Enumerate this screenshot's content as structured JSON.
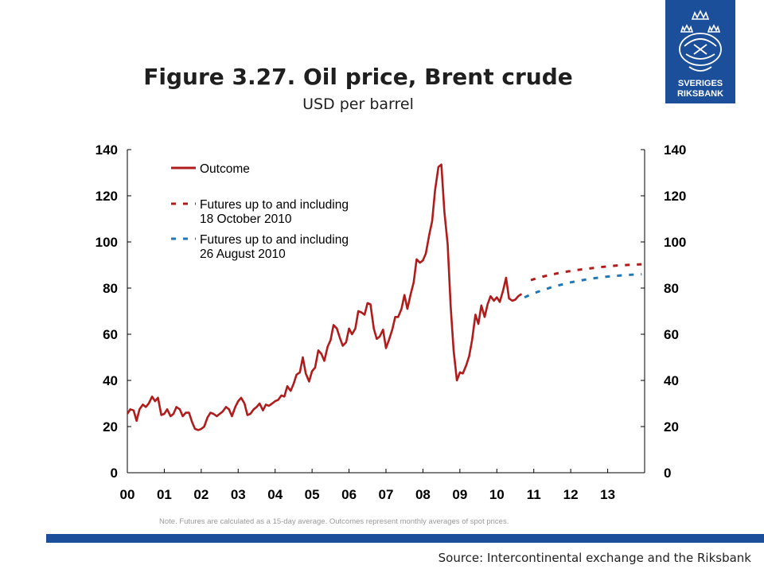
{
  "header": {
    "title": "Figure 3.27. Oil price, Brent crude",
    "subtitle": "USD per barrel"
  },
  "logo": {
    "line1": "SVERIGES",
    "line2": "RIKSBANK",
    "color": "#1b4f9a"
  },
  "footer": {
    "note": "Note. Futures are calculated as a 15-day average. Outcomes represent monthly averages of spot prices.",
    "source": "Source: Intercontinental exchange and the Riksbank"
  },
  "chart_data": {
    "type": "line",
    "title": "Figure 3.27. Oil price, Brent crude",
    "ylabel": "USD per barrel",
    "xlim": [
      2000,
      2014
    ],
    "ylim": [
      0,
      140
    ],
    "yticks": [
      0,
      20,
      40,
      60,
      80,
      100,
      120,
      140
    ],
    "xtick_labels": [
      "00",
      "01",
      "02",
      "03",
      "04",
      "05",
      "06",
      "07",
      "08",
      "09",
      "10",
      "11",
      "12",
      "13"
    ],
    "grid": false,
    "legend_position": "top-left",
    "series": [
      {
        "name": "Outcome",
        "style": "solid",
        "color": "#b01c1c",
        "points": [
          [
            2000.0,
            25.5
          ],
          [
            2000.08,
            27.5
          ],
          [
            2000.17,
            27.0
          ],
          [
            2000.25,
            22.5
          ],
          [
            2000.33,
            27.5
          ],
          [
            2000.42,
            29.5
          ],
          [
            2000.5,
            28.5
          ],
          [
            2000.58,
            30.0
          ],
          [
            2000.67,
            33.0
          ],
          [
            2000.75,
            31.0
          ],
          [
            2000.83,
            32.5
          ],
          [
            2000.92,
            25.0
          ],
          [
            2001.0,
            25.5
          ],
          [
            2001.08,
            27.5
          ],
          [
            2001.17,
            24.5
          ],
          [
            2001.25,
            25.5
          ],
          [
            2001.33,
            28.5
          ],
          [
            2001.42,
            27.5
          ],
          [
            2001.5,
            24.5
          ],
          [
            2001.58,
            26.0
          ],
          [
            2001.67,
            26.0
          ],
          [
            2001.75,
            22.0
          ],
          [
            2001.83,
            19.0
          ],
          [
            2001.92,
            18.5
          ],
          [
            2002.0,
            19.0
          ],
          [
            2002.08,
            20.0
          ],
          [
            2002.17,
            24.0
          ],
          [
            2002.25,
            26.0
          ],
          [
            2002.33,
            25.5
          ],
          [
            2002.42,
            24.5
          ],
          [
            2002.5,
            25.5
          ],
          [
            2002.58,
            26.5
          ],
          [
            2002.67,
            28.5
          ],
          [
            2002.75,
            27.5
          ],
          [
            2002.83,
            24.5
          ],
          [
            2002.92,
            28.5
          ],
          [
            2003.0,
            31.0
          ],
          [
            2003.08,
            32.5
          ],
          [
            2003.17,
            30.0
          ],
          [
            2003.25,
            25.0
          ],
          [
            2003.33,
            25.5
          ],
          [
            2003.42,
            27.5
          ],
          [
            2003.5,
            28.5
          ],
          [
            2003.58,
            30.0
          ],
          [
            2003.67,
            27.0
          ],
          [
            2003.75,
            29.5
          ],
          [
            2003.83,
            29.0
          ],
          [
            2003.92,
            30.0
          ],
          [
            2004.0,
            31.0
          ],
          [
            2004.08,
            31.5
          ],
          [
            2004.17,
            33.5
          ],
          [
            2004.25,
            33.0
          ],
          [
            2004.33,
            37.5
          ],
          [
            2004.42,
            35.5
          ],
          [
            2004.5,
            38.5
          ],
          [
            2004.58,
            42.5
          ],
          [
            2004.67,
            43.5
          ],
          [
            2004.75,
            50.0
          ],
          [
            2004.83,
            43.0
          ],
          [
            2004.92,
            39.5
          ],
          [
            2005.0,
            44.0
          ],
          [
            2005.08,
            45.5
          ],
          [
            2005.17,
            53.0
          ],
          [
            2005.25,
            51.5
          ],
          [
            2005.33,
            48.5
          ],
          [
            2005.42,
            54.5
          ],
          [
            2005.5,
            57.5
          ],
          [
            2005.58,
            64.0
          ],
          [
            2005.67,
            62.5
          ],
          [
            2005.75,
            58.5
          ],
          [
            2005.83,
            55.0
          ],
          [
            2005.92,
            56.5
          ],
          [
            2006.0,
            62.5
          ],
          [
            2006.08,
            60.0
          ],
          [
            2006.17,
            62.5
          ],
          [
            2006.25,
            70.0
          ],
          [
            2006.33,
            69.5
          ],
          [
            2006.42,
            68.5
          ],
          [
            2006.5,
            73.5
          ],
          [
            2006.58,
            73.0
          ],
          [
            2006.67,
            62.5
          ],
          [
            2006.75,
            58.0
          ],
          [
            2006.83,
            59.0
          ],
          [
            2006.92,
            62.0
          ],
          [
            2007.0,
            54.0
          ],
          [
            2007.08,
            57.5
          ],
          [
            2007.17,
            62.0
          ],
          [
            2007.25,
            67.5
          ],
          [
            2007.33,
            67.5
          ],
          [
            2007.42,
            71.0
          ],
          [
            2007.5,
            77.0
          ],
          [
            2007.58,
            71.0
          ],
          [
            2007.67,
            77.5
          ],
          [
            2007.75,
            82.5
          ],
          [
            2007.83,
            92.5
          ],
          [
            2007.92,
            91.0
          ],
          [
            2008.0,
            92.0
          ],
          [
            2008.08,
            95.0
          ],
          [
            2008.17,
            103.0
          ],
          [
            2008.25,
            109.0
          ],
          [
            2008.33,
            122.5
          ],
          [
            2008.42,
            132.5
          ],
          [
            2008.5,
            133.5
          ],
          [
            2008.58,
            113.0
          ],
          [
            2008.67,
            99.0
          ],
          [
            2008.75,
            72.0
          ],
          [
            2008.83,
            53.0
          ],
          [
            2008.92,
            40.0
          ],
          [
            2009.0,
            43.5
          ],
          [
            2009.08,
            43.0
          ],
          [
            2009.17,
            46.5
          ],
          [
            2009.25,
            50.5
          ],
          [
            2009.33,
            57.5
          ],
          [
            2009.42,
            68.5
          ],
          [
            2009.5,
            64.5
          ],
          [
            2009.58,
            72.5
          ],
          [
            2009.67,
            67.5
          ],
          [
            2009.75,
            73.0
          ],
          [
            2009.83,
            76.5
          ],
          [
            2009.92,
            74.5
          ],
          [
            2010.0,
            76.0
          ],
          [
            2010.08,
            74.0
          ],
          [
            2010.17,
            79.0
          ],
          [
            2010.25,
            84.5
          ],
          [
            2010.33,
            75.5
          ],
          [
            2010.42,
            74.5
          ],
          [
            2010.5,
            75.0
          ],
          [
            2010.58,
            76.5
          ],
          [
            2010.67,
            77.5
          ]
        ]
      },
      {
        "name": "Futures up to and including 18 October 2010",
        "style": "dashed",
        "color": "#b01c1c",
        "points": [
          [
            2010.92,
            83.5
          ],
          [
            2011.25,
            85.0
          ],
          [
            2011.75,
            86.8
          ],
          [
            2012.25,
            88.0
          ],
          [
            2012.75,
            89.0
          ],
          [
            2013.25,
            89.8
          ],
          [
            2013.75,
            90.2
          ],
          [
            2013.92,
            90.3
          ]
        ]
      },
      {
        "name": "Futures up to and including 26 August 2010",
        "style": "dashed",
        "color": "#1f77b4",
        "points": [
          [
            2010.75,
            76.0
          ],
          [
            2011.0,
            77.8
          ],
          [
            2011.5,
            80.5
          ],
          [
            2012.0,
            82.5
          ],
          [
            2012.5,
            84.0
          ],
          [
            2013.0,
            85.0
          ],
          [
            2013.5,
            85.7
          ],
          [
            2013.92,
            86.0
          ]
        ]
      }
    ]
  }
}
